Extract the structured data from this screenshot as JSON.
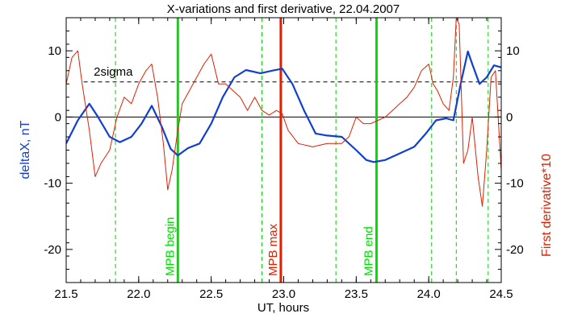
{
  "chart_data": {
    "type": "line",
    "title": "X-variations and first derivative, 22.04.2007",
    "xlabel": "UT, hours",
    "ylabel_left": "deltaX, nT",
    "ylabel_right": "First derivative*10",
    "xlim": [
      21.5,
      24.5
    ],
    "ylim": [
      -25,
      15
    ],
    "xticks": [
      21.5,
      22.0,
      22.5,
      23.0,
      23.5,
      24.0,
      24.5
    ],
    "xtick_labels": [
      "21.5",
      "22.0",
      "22.5",
      "23.0",
      "23.5",
      "24.0",
      "24.5"
    ],
    "yticks": [
      -20,
      -10,
      0,
      10
    ],
    "ytick_labels": [
      "-20",
      "-10",
      "0",
      "10"
    ],
    "threshold": {
      "label": "2sigma",
      "value": 5.3
    },
    "zero_line": 0,
    "solid_vlines": [
      {
        "x": 22.27,
        "label": "MPB begin",
        "color": "#00e000"
      },
      {
        "x": 22.98,
        "label": "MPB max",
        "color": "#e02000"
      },
      {
        "x": 23.64,
        "label": "MPB end",
        "color": "#00e000"
      }
    ],
    "dashed_vlines": [
      21.84,
      22.85,
      23.36,
      24.02,
      24.19,
      24.41
    ],
    "series": [
      {
        "name": "deltaX",
        "color": "#1040d0",
        "x": [
          21.5,
          21.58,
          21.66,
          21.72,
          21.8,
          21.87,
          21.95,
          22.02,
          22.09,
          22.16,
          22.22,
          22.27,
          22.34,
          22.42,
          22.5,
          22.58,
          22.66,
          22.74,
          22.84,
          22.92,
          22.99,
          23.06,
          23.14,
          23.22,
          23.3,
          23.4,
          23.5,
          23.57,
          23.62,
          23.7,
          23.8,
          23.9,
          23.98,
          24.05,
          24.12,
          24.17,
          24.22,
          24.27,
          24.3,
          24.35,
          24.4,
          24.45,
          24.5
        ],
        "values": [
          -4,
          -0.5,
          2,
          0,
          -3,
          -3.8,
          -3,
          -1,
          1.7,
          -1.5,
          -4.8,
          -5.8,
          -4.7,
          -4,
          -1,
          3,
          6,
          7.1,
          6.6,
          7,
          7.3,
          5,
          1,
          -2.5,
          -2.8,
          -3,
          -5,
          -6.5,
          -6.8,
          -6.5,
          -5.5,
          -4.5,
          -2.5,
          -0.5,
          -0.2,
          -0.5,
          5,
          9.9,
          8,
          5,
          6,
          7.8,
          7.5
        ]
      },
      {
        "name": "First derivative*10",
        "color": "#e02000",
        "x": [
          21.5,
          21.54,
          21.58,
          21.61,
          21.66,
          21.7,
          21.74,
          21.8,
          21.85,
          21.9,
          21.95,
          22.0,
          22.05,
          22.09,
          22.13,
          22.17,
          22.2,
          22.23,
          22.27,
          22.3,
          22.35,
          22.4,
          22.45,
          22.5,
          22.55,
          22.6,
          22.65,
          22.7,
          22.75,
          22.8,
          22.85,
          22.9,
          22.95,
          22.99,
          23.03,
          23.1,
          23.2,
          23.3,
          23.35,
          23.4,
          23.45,
          23.5,
          23.55,
          23.6,
          23.65,
          23.7,
          23.75,
          23.8,
          23.85,
          23.9,
          23.95,
          24.0,
          24.03,
          24.06,
          24.1,
          24.14,
          24.17,
          24.19,
          24.21,
          24.24,
          24.27,
          24.3,
          24.34,
          24.37,
          24.4,
          24.43,
          24.46,
          24.5
        ],
        "values": [
          5,
          9,
          10,
          5,
          -2,
          -9,
          -7,
          -5,
          0,
          3,
          2,
          5,
          7,
          8,
          3,
          -4,
          -11,
          -8,
          -2,
          2,
          4,
          6,
          8,
          9.5,
          5,
          5,
          4,
          3,
          1,
          3,
          1,
          0.3,
          1,
          0.5,
          -2,
          -4,
          -4.5,
          -4,
          -4,
          -4,
          -3,
          0,
          -1,
          -1,
          -0.5,
          0,
          1,
          2,
          3,
          4.5,
          7,
          8,
          5,
          4,
          2,
          1,
          6,
          15,
          14,
          -7,
          -5,
          0,
          -9,
          -13.5,
          -5,
          6,
          7,
          -8
        ]
      }
    ]
  }
}
